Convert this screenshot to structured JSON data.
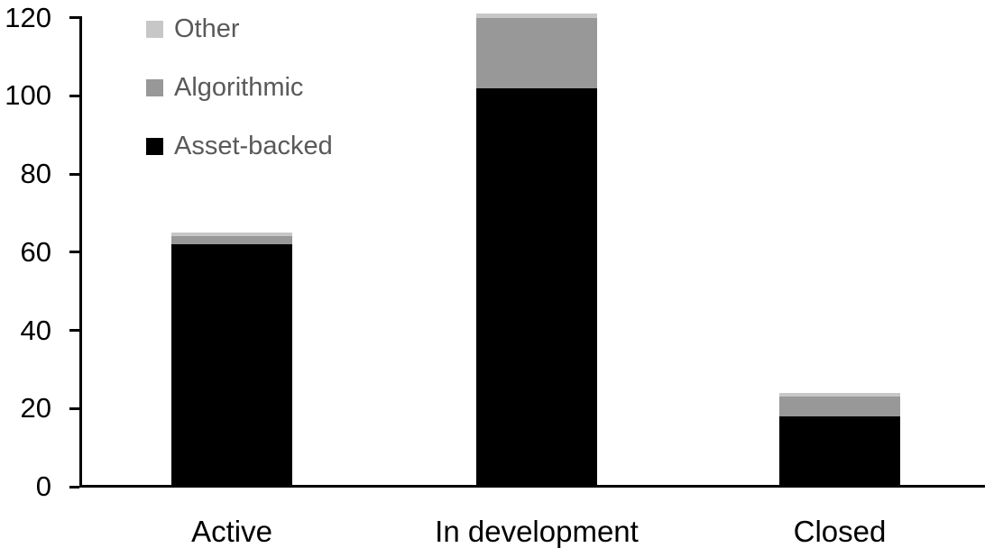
{
  "chart_data": {
    "type": "bar",
    "stacked": true,
    "title": "",
    "xlabel": "",
    "ylabel": "",
    "categories": [
      "Active",
      "In development",
      "Closed"
    ],
    "series": [
      {
        "name": "Other",
        "color": "#c7c7c7",
        "values": [
          1,
          1,
          1
        ]
      },
      {
        "name": "Algorithmic",
        "color": "#989898",
        "values": [
          2,
          18,
          5
        ]
      },
      {
        "name": "Asset-backed",
        "color": "#000000",
        "values": [
          62,
          102,
          18
        ]
      }
    ],
    "totals": [
      65,
      121,
      24
    ],
    "ylim": [
      0,
      120
    ],
    "yticks": [
      0,
      20,
      40,
      60,
      80,
      100,
      120
    ],
    "grid": false,
    "legend_position": "top-left",
    "axis_color": "#000000",
    "tick_label_color": "#000000",
    "legend_text_color": "#595959",
    "background_color": "#ffffff"
  }
}
